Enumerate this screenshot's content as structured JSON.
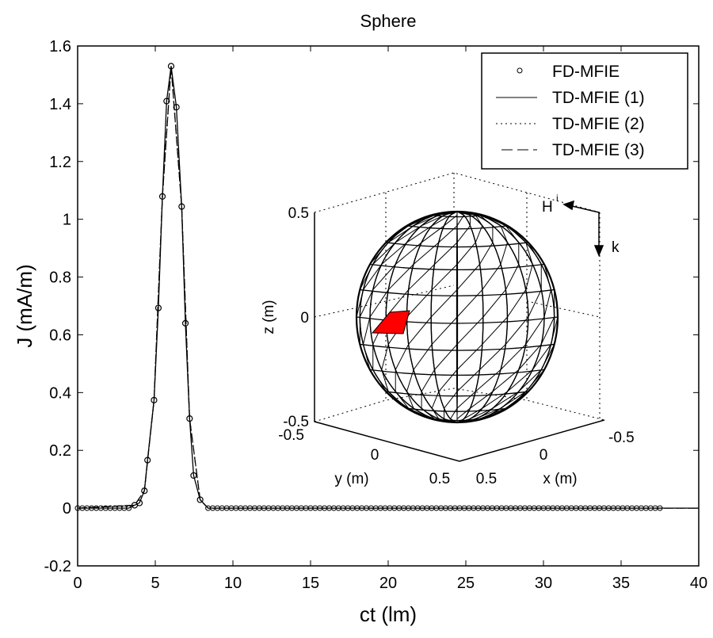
{
  "chart_data": {
    "type": "line",
    "title": "Sphere",
    "xlabel": "ct (lm)",
    "ylabel": "J (mA/m)",
    "xlim": [
      0,
      40
    ],
    "ylim": [
      -0.2,
      1.6
    ],
    "xticks": [
      "0",
      "5",
      "10",
      "15",
      "20",
      "25",
      "30",
      "35",
      "40"
    ],
    "yticks": [
      "-0.2",
      "0",
      "0.2",
      "0.4",
      "0.6",
      "0.8",
      "1",
      "1.2",
      "1.4",
      "1.6"
    ],
    "grid": false,
    "legend_position": "top-right",
    "legend": [
      "FD-MFIE",
      "TD-MFIE (1)",
      "TD-MFIE (2)",
      "TD-MFIE (3)"
    ],
    "series": [
      {
        "name": "FD-MFIE",
        "style": "circles",
        "x": [
          3.67,
          3.98,
          4.3,
          4.5,
          4.92,
          5.2,
          5.46,
          5.73,
          6.02,
          6.36,
          6.7,
          6.94,
          7.21,
          7.47,
          7.89
        ],
        "y": [
          0.01,
          0.018,
          0.06,
          0.166,
          0.374,
          0.693,
          1.079,
          1.409,
          1.53,
          1.388,
          1.044,
          0.64,
          0.31,
          0.113,
          0.029
        ],
        "baseline_x_range": [
          0,
          37.7
        ],
        "baseline_step": 0.3,
        "baseline_y": 0
      },
      {
        "name": "TD-MFIE (1)",
        "style": "solid",
        "x": [
          0,
          3.3,
          3.67,
          3.98,
          4.3,
          4.5,
          4.92,
          5.2,
          5.46,
          5.73,
          6.02,
          6.36,
          6.7,
          6.94,
          7.21,
          7.47,
          7.89,
          8.4,
          40
        ],
        "y": [
          0,
          0,
          0.01,
          0.018,
          0.06,
          0.166,
          0.374,
          0.693,
          1.079,
          1.409,
          1.53,
          1.388,
          1.044,
          0.64,
          0.31,
          0.113,
          0.029,
          0,
          0
        ]
      },
      {
        "name": "TD-MFIE (2)",
        "style": "dotted",
        "x": [
          0,
          3.67,
          4.3,
          4.92,
          5.46,
          6.02,
          6.7,
          7.21,
          7.89,
          8.4,
          40
        ],
        "y": [
          0,
          0.01,
          0.06,
          0.374,
          1.079,
          1.53,
          1.044,
          0.31,
          0.029,
          0,
          0
        ]
      },
      {
        "name": "TD-MFIE (3)",
        "style": "dashed",
        "x": [
          0,
          3.67,
          4.3,
          4.92,
          5.46,
          6.02,
          6.7,
          7.21,
          7.89,
          8.4,
          40
        ],
        "y": [
          0,
          0.01,
          0.06,
          0.374,
          1.079,
          1.53,
          1.044,
          0.31,
          0.029,
          0,
          0
        ]
      }
    ],
    "inset": {
      "zlabel": "z (m)",
      "ylabel": "y (m)",
      "xlabel": "x (m)",
      "zticks": [
        "0.5",
        "0",
        "-0.5"
      ],
      "yticks": [
        "-0.5",
        "0",
        "0.5"
      ],
      "xticks": [
        "0.5",
        "0",
        "-0.5"
      ],
      "field_label": "H",
      "field_sup": "i",
      "wave_label": "k",
      "highlight_color": "#ff0000"
    }
  }
}
